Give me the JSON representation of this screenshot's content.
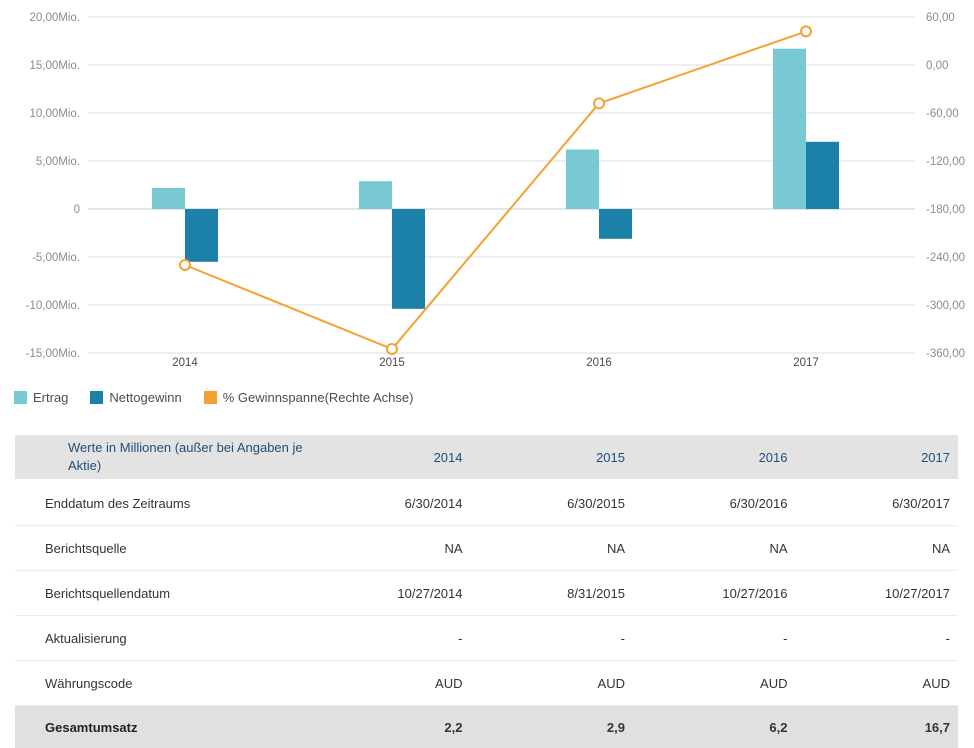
{
  "chart_data": {
    "type": "combo-bar-line",
    "categories": [
      "2014",
      "2015",
      "2016",
      "2017"
    ],
    "series": [
      {
        "name": "Ertrag",
        "type": "bar",
        "axis": "left",
        "color": "#79c9d4",
        "values": [
          2.2,
          2.9,
          6.2,
          16.7
        ]
      },
      {
        "name": "Nettogewinn",
        "type": "bar",
        "axis": "left",
        "color": "#1b81a8",
        "values": [
          -5.5,
          -10.4,
          -3.1,
          7.0
        ]
      },
      {
        "name": "% Gewinnspanne(Rechte Achse)",
        "type": "line",
        "axis": "right",
        "color": "#f5a12f",
        "values": [
          -250,
          -355,
          -48,
          42
        ]
      }
    ],
    "left_axis": {
      "labels": [
        "20,00Mio.",
        "15,00Mio.",
        "10,00Mio.",
        "5,00Mio.",
        "0",
        "-5,00Mio.",
        "-10,00Mio.",
        "-15,00Mio."
      ],
      "max": 20,
      "min": -15,
      "step": 5,
      "unit": "Mio."
    },
    "right_axis": {
      "labels": [
        "60,00",
        "0,00",
        "-60,00",
        "-120,00",
        "-180,00",
        "-240,00",
        "-300,00",
        "-360,00"
      ],
      "max": 60,
      "min": -360,
      "step": 60
    },
    "grid": true,
    "legend_position": "bottom-left",
    "title": "",
    "xlabel": "",
    "ylabel": ""
  },
  "table": {
    "header": {
      "label": "Werte in Millionen (außer bei Angaben je Aktie)",
      "years": [
        "2014",
        "2015",
        "2016",
        "2017"
      ]
    },
    "rows": [
      {
        "label": "Enddatum des Zeitraums",
        "values": [
          "6/30/2014",
          "6/30/2015",
          "6/30/2016",
          "6/30/2017"
        ]
      },
      {
        "label": "Berichtsquelle",
        "values": [
          "NA",
          "NA",
          "NA",
          "NA"
        ]
      },
      {
        "label": "Berichtsquellendatum",
        "values": [
          "10/27/2014",
          "8/31/2015",
          "10/27/2016",
          "10/27/2017"
        ]
      },
      {
        "label": "Aktualisierung",
        "values": [
          "-",
          "-",
          "-",
          "-"
        ]
      },
      {
        "label": "Währungscode",
        "values": [
          "AUD",
          "AUD",
          "AUD",
          "AUD"
        ]
      },
      {
        "label": "Gesamtumsatz",
        "values": [
          "2,2",
          "2,9",
          "6,2",
          "16,7"
        ]
      }
    ]
  },
  "colors": {
    "ertrag": "#79c9d4",
    "nettogewinn": "#1b81a8",
    "gewinnspanne": "#f5a12f",
    "table_header_text": "#1f4e79",
    "gridline": "#dadde0"
  }
}
